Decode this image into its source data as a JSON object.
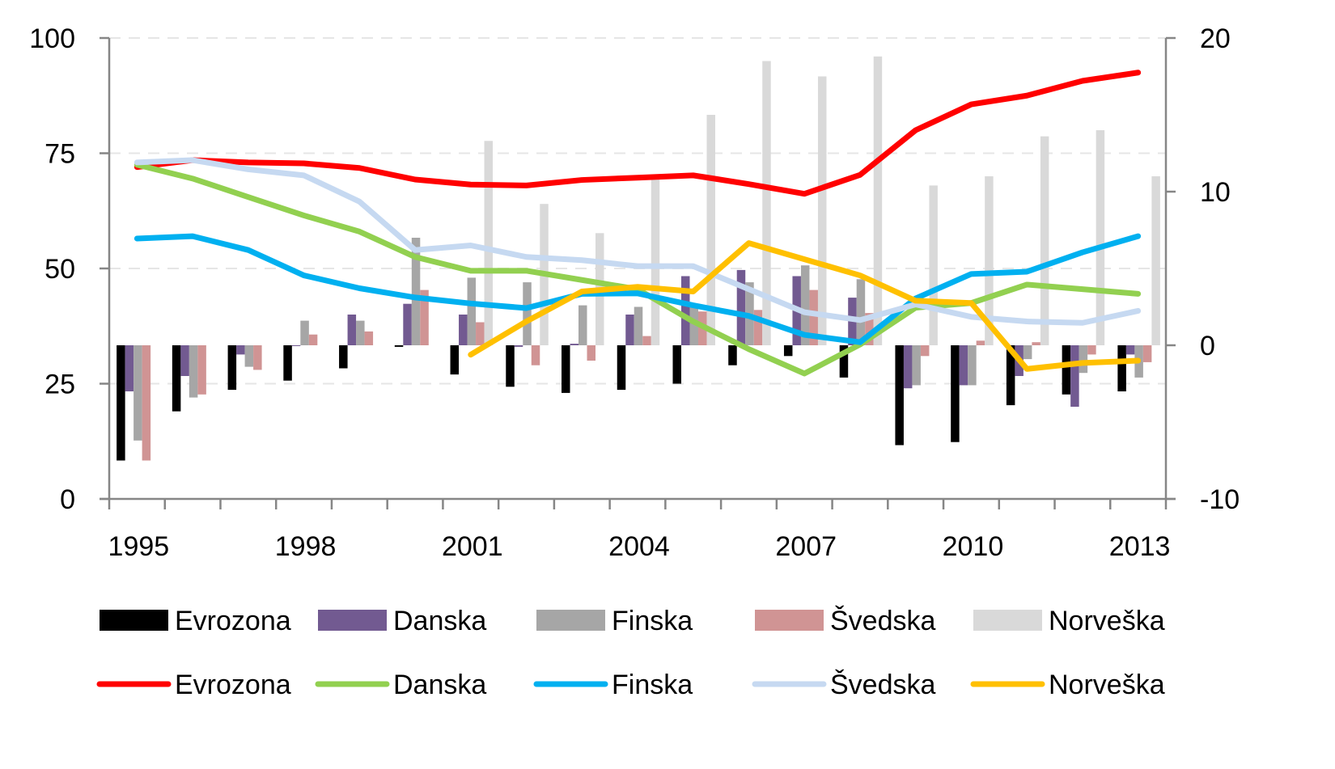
{
  "chart_data": {
    "type": "bar+line",
    "title": "",
    "xlabel": "",
    "ylabel_left": "",
    "ylabel_right": "",
    "years": [
      1995,
      1996,
      1997,
      1998,
      1999,
      2000,
      2001,
      2002,
      2003,
      2004,
      2005,
      2006,
      2007,
      2008,
      2009,
      2010,
      2011,
      2012,
      2013
    ],
    "x_tick_labels": [
      "1995",
      "1998",
      "2001",
      "2004",
      "2007",
      "2010",
      "2013"
    ],
    "left_axis": {
      "range": [
        0,
        100
      ],
      "ticks": [
        0,
        25,
        50,
        75,
        100
      ],
      "tick_labels": [
        "0",
        "25",
        "50",
        "75",
        "100"
      ]
    },
    "right_axis": {
      "range": [
        -10,
        20
      ],
      "ticks": [
        -10,
        0,
        10,
        20
      ],
      "tick_labels": [
        "-10",
        "0",
        "10",
        "20"
      ]
    },
    "grid": "horizontal dashed",
    "legend_position": "bottom",
    "bar_series": [
      {
        "name": "Evrozona",
        "color": "#000000",
        "axis": "right",
        "values": [
          -7.5,
          -4.3,
          -2.9,
          -2.3,
          -1.5,
          -0.1,
          -1.9,
          -2.7,
          -3.1,
          -2.9,
          -2.5,
          -1.3,
          -0.7,
          -2.1,
          -6.5,
          -6.3,
          -3.9,
          -3.2,
          -3.0
        ]
      },
      {
        "name": "Danska",
        "color": "#725A91",
        "axis": "right",
        "values": [
          -3.0,
          -2.0,
          -0.6,
          0.0,
          2.0,
          2.7,
          2.0,
          -0.1,
          0.1,
          2.0,
          4.5,
          4.9,
          4.5,
          3.1,
          -2.8,
          -2.6,
          -2.0,
          -4.0,
          -0.6
        ]
      },
      {
        "name": "Finska",
        "color": "#A6A6A6",
        "axis": "right",
        "values": [
          -6.2,
          -3.4,
          -1.4,
          1.6,
          1.6,
          7.0,
          4.4,
          4.1,
          2.6,
          2.5,
          2.6,
          4.1,
          5.2,
          4.3,
          -2.6,
          -2.6,
          -0.9,
          -1.8,
          -2.1
        ]
      },
      {
        "name": "Švedska",
        "color": "#D09494",
        "axis": "right",
        "values": [
          -7.5,
          -3.2,
          -1.6,
          0.7,
          0.9,
          3.6,
          1.5,
          -1.3,
          -1.0,
          0.6,
          2.2,
          2.3,
          3.6,
          2.1,
          -0.7,
          0.3,
          0.2,
          -0.6,
          -1.1
        ]
      },
      {
        "name": "Norveška",
        "color": "#D9D9D9",
        "axis": "right",
        "values": [
          null,
          null,
          null,
          null,
          null,
          null,
          13.3,
          9.2,
          7.3,
          10.8,
          15.0,
          18.5,
          17.5,
          18.8,
          10.4,
          11.0,
          13.6,
          14.0,
          11.0
        ]
      }
    ],
    "line_series": [
      {
        "name": "Evrozona",
        "color": "#FF0000",
        "axis": "left",
        "values": [
          72.0,
          73.5,
          73.0,
          72.8,
          71.8,
          69.3,
          68.2,
          68.0,
          69.2,
          69.7,
          70.2,
          68.3,
          66.2,
          70.3,
          80.0,
          85.6,
          87.5,
          90.7,
          92.5
        ]
      },
      {
        "name": "Danska",
        "color": "#92D050",
        "axis": "left",
        "values": [
          72.5,
          69.5,
          65.5,
          61.5,
          58.0,
          52.5,
          49.5,
          49.5,
          47.5,
          45.5,
          38.5,
          32.5,
          27.2,
          33.5,
          41.5,
          42.5,
          46.5,
          45.5,
          44.5
        ]
      },
      {
        "name": "Finska",
        "color": "#00B0F0",
        "axis": "left",
        "values": [
          56.5,
          57.0,
          54.0,
          48.5,
          45.7,
          43.7,
          42.4,
          41.4,
          44.5,
          44.6,
          42.0,
          39.7,
          35.6,
          34.0,
          43.5,
          48.8,
          49.3,
          53.5,
          57.0
        ]
      },
      {
        "name": "Švedska",
        "color": "#C6D9F1",
        "axis": "left",
        "values": [
          73.0,
          73.5,
          71.5,
          70.2,
          64.5,
          54.0,
          55.0,
          52.5,
          51.8,
          50.5,
          50.5,
          45.5,
          40.5,
          38.8,
          42.2,
          39.5,
          38.5,
          38.2,
          40.8
        ]
      },
      {
        "name": "Norveška",
        "color": "#FFC000",
        "axis": "left",
        "values": [
          null,
          null,
          null,
          null,
          null,
          null,
          31.3,
          38.5,
          45.0,
          46.0,
          45.0,
          55.5,
          52.0,
          48.5,
          43.0,
          42.5,
          28.2,
          29.5,
          30.0
        ]
      }
    ]
  }
}
